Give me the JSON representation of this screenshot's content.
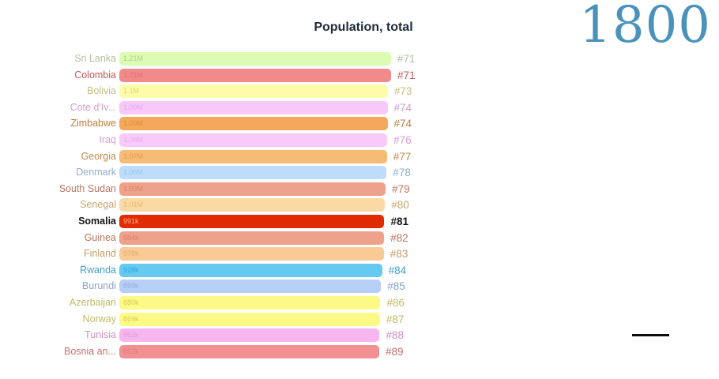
{
  "header": {
    "title": "Population, total",
    "year": "1800"
  },
  "colors": {
    "year_color": "#4b92bb",
    "title_color": "#1e2b39",
    "timeline_color": "#0d0d0d",
    "background": "#ffffff"
  },
  "chart_data": {
    "type": "bar",
    "orientation": "horizontal",
    "title": "Population, total",
    "year_label": "1800",
    "legend": "none",
    "axis": "none (bar race frame, ranks #71–#89 visible)",
    "rows": [
      {
        "name": "Sri Lanka",
        "rank": "#71",
        "value": 1210000,
        "value_label": "1.21M",
        "bar_color": "#dcfcb4",
        "text_color": "#b3c19e",
        "value_color": "#aed083",
        "highlighted": false
      },
      {
        "name": "Colombia",
        "rank": "#71",
        "value": 1210000,
        "value_label": "1.21M",
        "bar_color": "#f18a8a",
        "text_color": "#c05a5a",
        "value_color": "#e07070",
        "highlighted": false
      },
      {
        "name": "Bolivia",
        "rank": "#73",
        "value": 1100000,
        "value_label": "1.1M",
        "bar_color": "#fdfcaa",
        "text_color": "#c4bf82",
        "value_color": "#ddd476",
        "highlighted": false
      },
      {
        "name": "Cote d'Iv...",
        "rank": "#74",
        "value": 1090000,
        "value_label": "1.09M",
        "bar_color": "#f8c8f8",
        "text_color": "#cf9dcf",
        "value_color": "#e5aae5",
        "highlighted": false
      },
      {
        "name": "Zimbabwe",
        "rank": "#74",
        "value": 1090000,
        "value_label": "1.09M",
        "bar_color": "#f4a85c",
        "text_color": "#c07c3c",
        "value_color": "#db8f3e",
        "highlighted": false
      },
      {
        "name": "Iraq",
        "rank": "#76",
        "value": 1080000,
        "value_label": "1.08M",
        "bar_color": "#f9caf9",
        "text_color": "#d2a2d2",
        "value_color": "#e6ace6",
        "highlighted": false
      },
      {
        "name": "Georgia",
        "rank": "#77",
        "value": 1070000,
        "value_label": "1.07M",
        "bar_color": "#f6bb74",
        "text_color": "#c08a4a",
        "value_color": "#dd9f4c",
        "highlighted": false
      },
      {
        "name": "Denmark",
        "rank": "#78",
        "value": 1060000,
        "value_label": "1.06M",
        "bar_color": "#bedcfb",
        "text_color": "#8fadd2",
        "value_color": "#99c2ea",
        "highlighted": false
      },
      {
        "name": "South Sudan",
        "rank": "#79",
        "value": 1030000,
        "value_label": "1.03M",
        "bar_color": "#efa28b",
        "text_color": "#bd7560",
        "value_color": "#d9836a",
        "highlighted": false
      },
      {
        "name": "Senegal",
        "rank": "#80",
        "value": 1010000,
        "value_label": "1.01M",
        "bar_color": "#fbd9a4",
        "text_color": "#c9a66d",
        "value_color": "#e4bb73",
        "highlighted": false
      },
      {
        "name": "Somalia",
        "rank": "#81",
        "value": 991000,
        "value_label": "991k",
        "bar_color": "#e12a02",
        "text_color": "#141414",
        "value_color": "#ffb18d",
        "highlighted": true
      },
      {
        "name": "Guinea",
        "rank": "#82",
        "value": 984000,
        "value_label": "984k",
        "bar_color": "#efa28b",
        "text_color": "#bd7560",
        "value_color": "#d9836a",
        "highlighted": false
      },
      {
        "name": "Finland",
        "rank": "#83",
        "value": 978000,
        "value_label": "978k",
        "bar_color": "#f8ca96",
        "text_color": "#c79d66",
        "value_color": "#e0ad67",
        "highlighted": false
      },
      {
        "name": "Rwanda",
        "rank": "#84",
        "value": 928000,
        "value_label": "928k",
        "bar_color": "#66caf0",
        "text_color": "#3f9fc9",
        "value_color": "#2fa6da",
        "highlighted": false
      },
      {
        "name": "Burundi",
        "rank": "#85",
        "value": 899000,
        "value_label": "899k",
        "bar_color": "#b7cff7",
        "text_color": "#8ca3cb",
        "value_color": "#92afe2",
        "highlighted": false
      },
      {
        "name": "Azerbaijan",
        "rank": "#86",
        "value": 880000,
        "value_label": "880k",
        "bar_color": "#fdf986",
        "text_color": "#c0ba62",
        "value_color": "#d9ce55",
        "highlighted": false
      },
      {
        "name": "Norway",
        "rank": "#87",
        "value": 869000,
        "value_label": "869k",
        "bar_color": "#fdf986",
        "text_color": "#c0ba62",
        "value_color": "#d9ce55",
        "highlighted": false
      },
      {
        "name": "Tunisia",
        "rank": "#88",
        "value": 862000,
        "value_label": "862k",
        "bar_color": "#f7b6f0",
        "text_color": "#cb90c3",
        "value_color": "#e09cd7",
        "highlighted": false
      },
      {
        "name": "Bosnia an...",
        "rank": "#89",
        "value": 852000,
        "value_label": "852k",
        "bar_color": "#f29191",
        "text_color": "#c66e6e",
        "value_color": "#dd7f7f",
        "highlighted": false
      }
    ]
  }
}
